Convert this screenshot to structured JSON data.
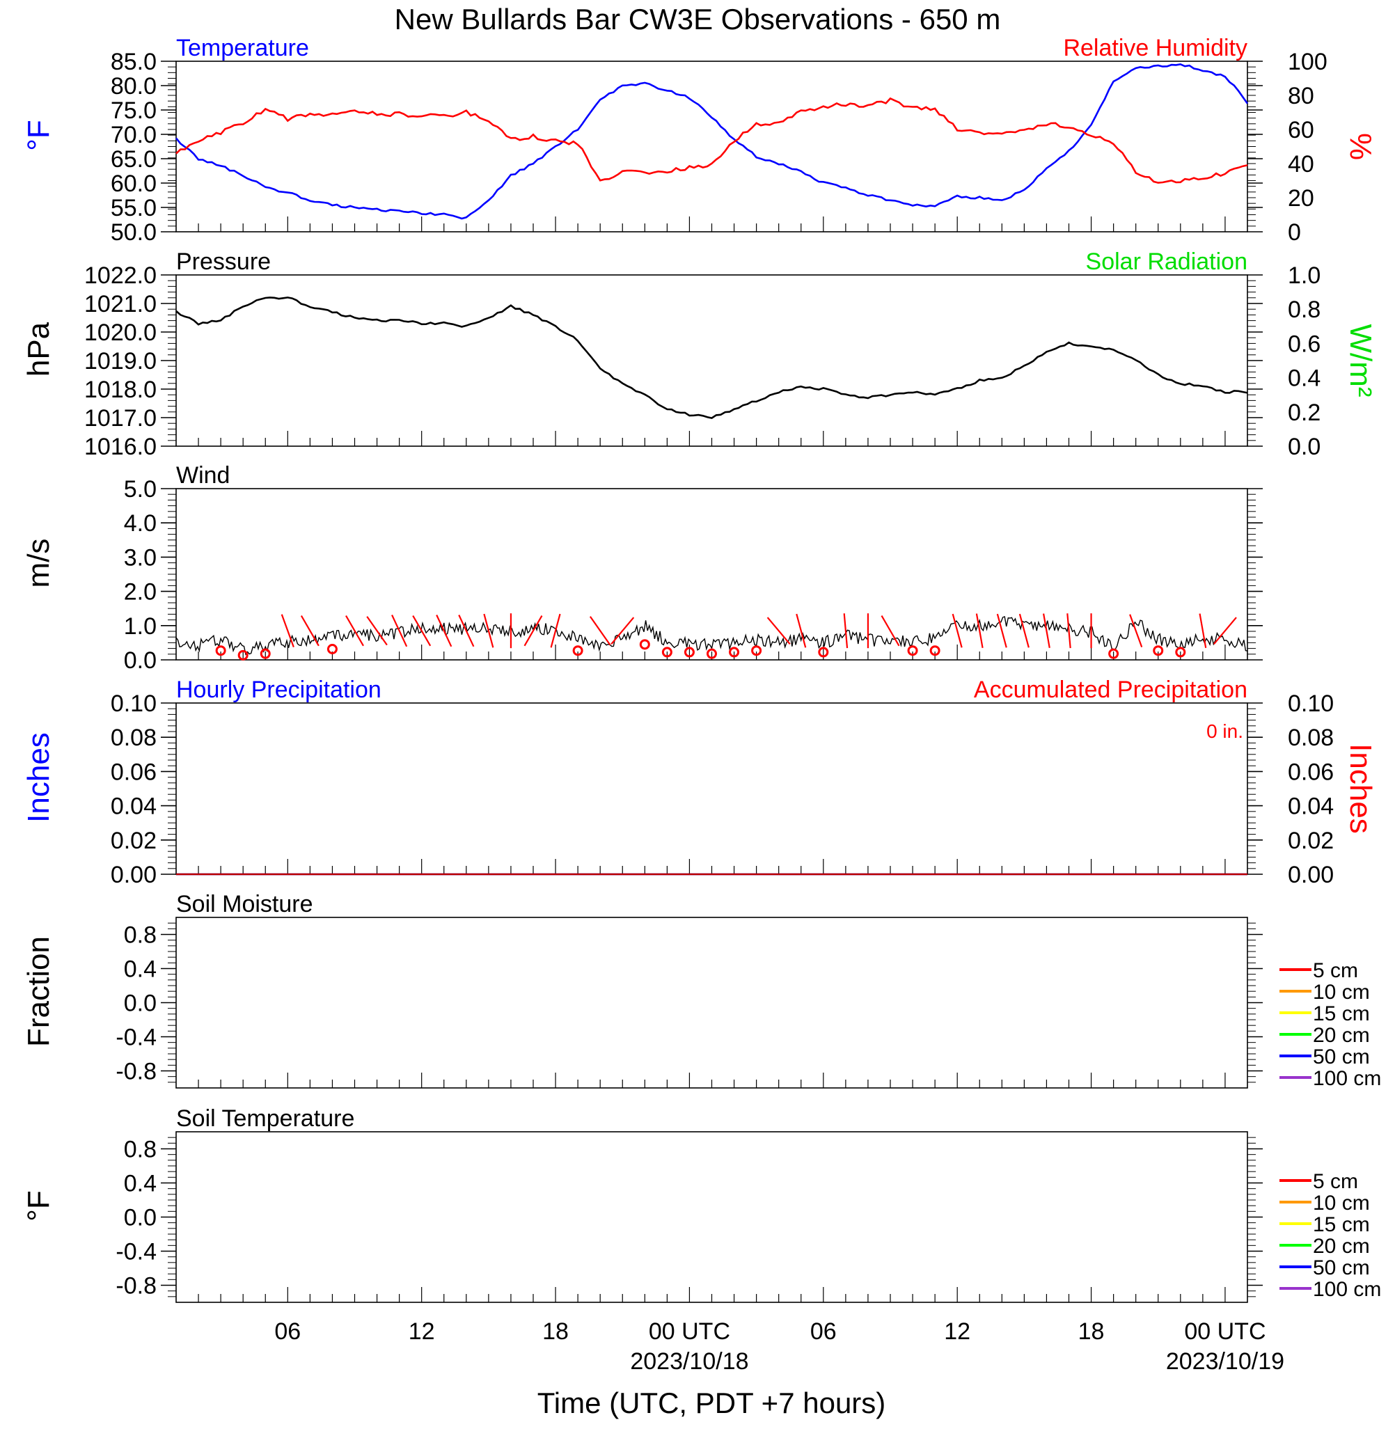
{
  "title": "New Bullards Bar CW3E Observations - 650 m",
  "xlabel": "Time (UTC, PDT +7 hours)",
  "x_axis": {
    "start_hour": 1,
    "end_hour": 49,
    "major_ticks": [
      {
        "hour": 6,
        "label": "06",
        "sublabel": ""
      },
      {
        "hour": 12,
        "label": "12",
        "sublabel": ""
      },
      {
        "hour": 18,
        "label": "18",
        "sublabel": ""
      },
      {
        "hour": 24,
        "label": "00 UTC",
        "sublabel": "2023/10/18"
      },
      {
        "hour": 30,
        "label": "06",
        "sublabel": ""
      },
      {
        "hour": 36,
        "label": "12",
        "sublabel": ""
      },
      {
        "hour": 42,
        "label": "18",
        "sublabel": ""
      },
      {
        "hour": 48,
        "label": "00 UTC",
        "sublabel": "2023/10/19"
      }
    ]
  },
  "colors": {
    "temperature": "#0000ff",
    "humidity": "#ff0000",
    "solar": "#00dd00",
    "axis": "#000000"
  },
  "soil_legend": [
    {
      "label": "5 cm",
      "color": "#ff0000"
    },
    {
      "label": "10 cm",
      "color": "#ff9900"
    },
    {
      "label": "15 cm",
      "color": "#ffff00"
    },
    {
      "label": "20 cm",
      "color": "#00ff00"
    },
    {
      "label": "50 cm",
      "color": "#0000ff"
    },
    {
      "label": "100 cm",
      "color": "#9933cc"
    }
  ],
  "chart_data": [
    {
      "type": "line",
      "panel": "temperature",
      "title_left": "Temperature",
      "title_right": "Relative Humidity",
      "ylabel_left": "°F",
      "ylabel_right": "%",
      "ylim_left": [
        50,
        85
      ],
      "ylim_right": [
        0,
        100
      ],
      "yticks_left": [
        "85.0",
        "80.0",
        "75.0",
        "70.0",
        "65.0",
        "60.0",
        "55.0",
        "50.0"
      ],
      "yticks_right": [
        "100",
        "80",
        "60",
        "40",
        "20",
        "0"
      ],
      "series": [
        {
          "name": "Temperature",
          "axis": "left",
          "x": [
            1,
            2,
            3,
            4,
            5,
            6,
            7,
            8,
            9,
            10,
            11,
            12,
            13,
            14,
            15,
            16,
            17,
            18,
            19,
            20,
            21,
            22,
            23,
            24,
            25,
            26,
            27,
            28,
            29,
            30,
            31,
            32,
            33,
            34,
            35,
            36,
            37,
            38,
            39,
            40,
            41,
            42,
            43,
            44,
            45,
            46,
            47,
            48,
            49
          ],
          "y": [
            69,
            65,
            63.5,
            61.5,
            59.2,
            58,
            56.5,
            55.5,
            55,
            54.5,
            54.2,
            53.8,
            53.5,
            52.8,
            56.5,
            61.5,
            64,
            67.5,
            71,
            77,
            80,
            80.5,
            79,
            77.5,
            73.5,
            69,
            65.5,
            64,
            62.5,
            60,
            59,
            57.5,
            56.5,
            55.5,
            55.2,
            57.2,
            57,
            56.5,
            58.5,
            63,
            66.5,
            72,
            81,
            83.5,
            84,
            84.5,
            83,
            82,
            76.5
          ]
        },
        {
          "name": "Relative Humidity",
          "axis": "right",
          "x": [
            1,
            2,
            3,
            4,
            5,
            6,
            7,
            8,
            9,
            10,
            11,
            12,
            13,
            14,
            15,
            16,
            17,
            18,
            19,
            20,
            21,
            22,
            23,
            24,
            25,
            26,
            27,
            28,
            29,
            30,
            31,
            32,
            33,
            34,
            35,
            36,
            37,
            38,
            39,
            40,
            41,
            42,
            43,
            44,
            45,
            46,
            47,
            48,
            49
          ],
          "y": [
            46,
            53,
            58,
            64,
            72,
            66,
            69,
            69,
            70,
            69,
            69,
            68,
            68,
            70,
            65,
            54,
            56,
            53,
            52,
            29,
            36,
            34,
            35,
            38,
            39,
            53,
            63,
            64,
            70,
            73,
            75,
            74,
            77,
            73,
            72,
            60,
            58,
            58,
            59,
            63,
            62,
            57,
            52,
            35,
            29,
            30,
            32,
            34,
            40
          ]
        }
      ]
    },
    {
      "type": "line",
      "panel": "pressure",
      "title_left": "Pressure",
      "title_right": "Solar Radiation",
      "ylabel_left": "hPa",
      "ylabel_right": "W/m²",
      "ylim_left": [
        1016,
        1022
      ],
      "ylim_right": [
        0,
        1
      ],
      "yticks_left": [
        "1022.0",
        "1021.0",
        "1020.0",
        "1019.0",
        "1018.0",
        "1017.0",
        "1016.0"
      ],
      "yticks_right": [
        "1.0",
        "0.8",
        "0.6",
        "0.4",
        "0.2",
        "0.0"
      ],
      "series": [
        {
          "name": "Pressure",
          "axis": "left",
          "x": [
            1,
            2,
            3,
            4,
            5,
            6,
            7,
            8,
            9,
            10,
            11,
            12,
            13,
            14,
            15,
            16,
            17,
            18,
            19,
            20,
            21,
            22,
            23,
            24,
            25,
            26,
            27,
            28,
            29,
            30,
            31,
            32,
            33,
            34,
            35,
            36,
            37,
            38,
            39,
            40,
            41,
            42,
            43,
            44,
            45,
            46,
            47,
            48,
            49
          ],
          "y": [
            1020.7,
            1020.3,
            1020.4,
            1020.9,
            1021.2,
            1021.2,
            1020.9,
            1020.7,
            1020.5,
            1020.4,
            1020.4,
            1020.3,
            1020.3,
            1020.2,
            1020.5,
            1020.9,
            1020.6,
            1020.2,
            1019.7,
            1018.7,
            1018.2,
            1017.8,
            1017.3,
            1017.1,
            1017.0,
            1017.3,
            1017.6,
            1017.9,
            1018.1,
            1018.0,
            1017.8,
            1017.7,
            1017.8,
            1017.9,
            1017.8,
            1018.0,
            1018.3,
            1018.4,
            1018.8,
            1019.3,
            1019.6,
            1019.5,
            1019.4,
            1019.0,
            1018.5,
            1018.2,
            1018.1,
            1017.9,
            1017.9
          ]
        }
      ]
    },
    {
      "type": "line",
      "panel": "wind",
      "title_left": "Wind",
      "ylabel_left": "m/s",
      "ylim_left": [
        0,
        5
      ],
      "yticks_left": [
        "5.0",
        "4.0",
        "3.0",
        "2.0",
        "1.0",
        "0.0"
      ],
      "series": [
        {
          "name": "Wind speed",
          "axis": "left",
          "x": [
            1,
            2,
            3,
            4,
            5,
            6,
            7,
            8,
            9,
            10,
            11,
            12,
            13,
            14,
            15,
            16,
            17,
            18,
            19,
            20,
            21,
            22,
            23,
            24,
            25,
            26,
            27,
            28,
            29,
            30,
            31,
            32,
            33,
            34,
            35,
            36,
            37,
            38,
            39,
            40,
            41,
            42,
            43,
            44,
            45,
            46,
            47,
            48,
            49
          ],
          "y": [
            0.5,
            0.4,
            0.6,
            0.3,
            0.4,
            0.5,
            0.6,
            0.7,
            0.8,
            0.7,
            0.8,
            0.9,
            0.9,
            0.9,
            0.9,
            0.8,
            0.9,
            0.9,
            0.6,
            0.4,
            0.6,
            1.0,
            0.5,
            0.5,
            0.4,
            0.5,
            0.6,
            0.5,
            0.6,
            0.5,
            0.7,
            0.6,
            0.5,
            0.6,
            0.6,
            1.0,
            1.0,
            1.1,
            1.0,
            1.0,
            0.9,
            0.8,
            0.4,
            1.1,
            0.6,
            0.5,
            0.6,
            0.6,
            0.4
          ]
        }
      ],
      "barbs": [
        {
          "x": 3,
          "calm": true
        },
        {
          "x": 4,
          "calm": true
        },
        {
          "x": 5,
          "calm": true
        },
        {
          "x": 6,
          "dir": 340
        },
        {
          "x": 7,
          "dir": 330
        },
        {
          "x": 8,
          "calm": true
        },
        {
          "x": 9,
          "dir": 330
        },
        {
          "x": 10,
          "dir": 325
        },
        {
          "x": 11,
          "dir": 335
        },
        {
          "x": 12,
          "dir": 330
        },
        {
          "x": 13,
          "dir": 335
        },
        {
          "x": 14,
          "dir": 335
        },
        {
          "x": 15,
          "dir": 345
        },
        {
          "x": 16,
          "dir": 0
        },
        {
          "x": 17,
          "dir": 30
        },
        {
          "x": 18,
          "dir": 15
        },
        {
          "x": 19,
          "calm": true
        },
        {
          "x": 20,
          "dir": 145
        },
        {
          "x": 21,
          "dir": 40
        },
        {
          "x": 22,
          "calm": true
        },
        {
          "x": 23,
          "calm": true
        },
        {
          "x": 24,
          "calm": true
        },
        {
          "x": 25,
          "calm": true
        },
        {
          "x": 26,
          "calm": true
        },
        {
          "x": 27,
          "calm": true
        },
        {
          "x": 28,
          "dir": 320
        },
        {
          "x": 29,
          "dir": 345
        },
        {
          "x": 30,
          "calm": true
        },
        {
          "x": 31,
          "dir": 355
        },
        {
          "x": 32,
          "dir": 0
        },
        {
          "x": 33,
          "dir": 330
        },
        {
          "x": 34,
          "calm": true
        },
        {
          "x": 35,
          "calm": true
        },
        {
          "x": 36,
          "dir": 345
        },
        {
          "x": 37,
          "dir": 350
        },
        {
          "x": 38,
          "dir": 345
        },
        {
          "x": 39,
          "dir": 345
        },
        {
          "x": 40,
          "dir": 350
        },
        {
          "x": 41,
          "dir": 355
        },
        {
          "x": 42,
          "dir": 0
        },
        {
          "x": 43,
          "calm": true
        },
        {
          "x": 44,
          "dir": 160
        },
        {
          "x": 45,
          "calm": true
        },
        {
          "x": 46,
          "calm": true
        },
        {
          "x": 47,
          "dir": 170
        },
        {
          "x": 48,
          "dir": 40
        }
      ]
    },
    {
      "type": "line",
      "panel": "precipitation",
      "title_left": "Hourly Precipitation",
      "title_right": "Accumulated Precipitation",
      "annotation": "0 in.",
      "ylabel_left": "Inches",
      "ylabel_right": "Inches",
      "ylim_left": [
        0,
        0.1
      ],
      "ylim_right": [
        0,
        0.1
      ],
      "yticks_left": [
        "0.10",
        "0.08",
        "0.06",
        "0.04",
        "0.02",
        "0.00"
      ],
      "yticks_right": [
        "0.10",
        "0.08",
        "0.06",
        "0.04",
        "0.02",
        "0.00"
      ],
      "series": [
        {
          "name": "Hourly Precipitation",
          "axis": "left",
          "x": [
            1,
            49
          ],
          "y": [
            0,
            0
          ]
        },
        {
          "name": "Accumulated Precipitation",
          "axis": "right",
          "x": [
            1,
            49
          ],
          "y": [
            0,
            0
          ]
        }
      ]
    },
    {
      "type": "line",
      "panel": "soil-moisture",
      "title_left": "Soil Moisture",
      "ylabel_left": "Fraction",
      "ylim_left": [
        -1,
        1
      ],
      "yticks_left": [
        "0.8",
        "0.4",
        "0.0",
        "-0.4",
        "-0.8"
      ],
      "series": []
    },
    {
      "type": "line",
      "panel": "soil-temperature",
      "title_left": "Soil Temperature",
      "ylabel_left": "°F",
      "ylim_left": [
        -1,
        1
      ],
      "yticks_left": [
        "0.8",
        "0.4",
        "0.0",
        "-0.4",
        "-0.8"
      ],
      "series": []
    }
  ]
}
